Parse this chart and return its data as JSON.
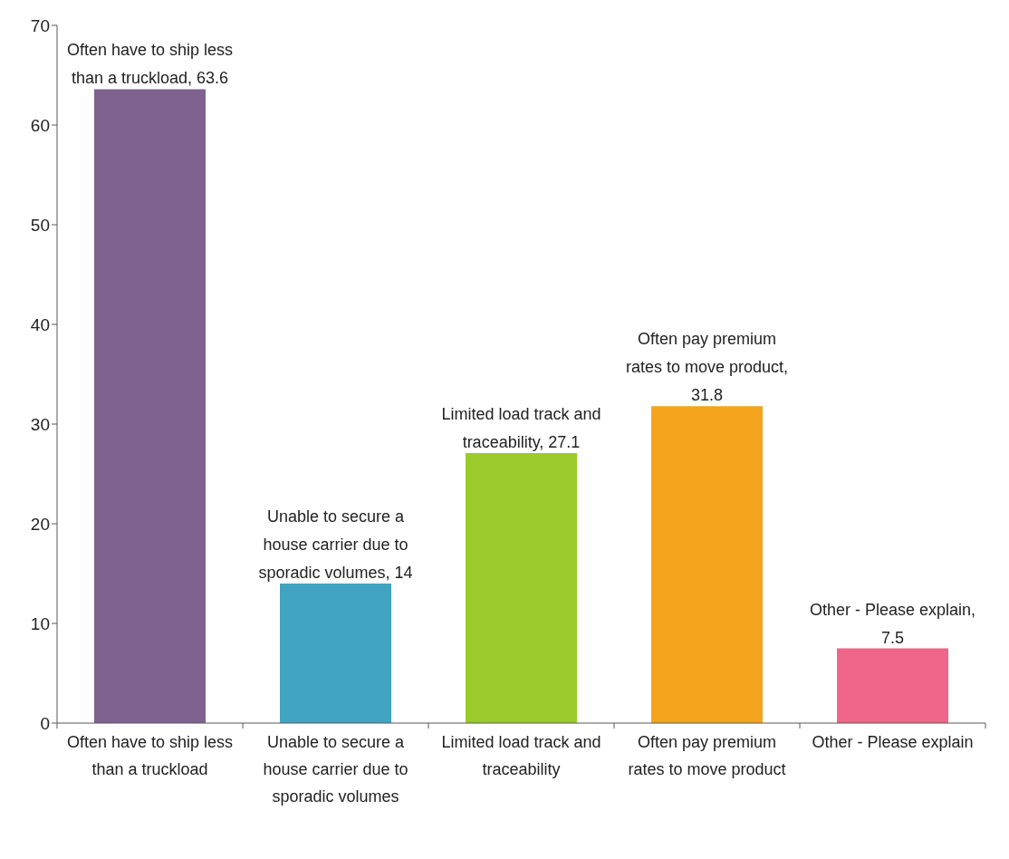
{
  "chart_data": {
    "type": "bar",
    "categories": [
      "Often have to ship less than a truckload",
      "Unable to secure a house carrier due to sporadic volumes",
      "Limited load track and traceability",
      "Often pay premium rates to move product",
      "Other - Please explain"
    ],
    "values": [
      63.6,
      14,
      27.1,
      31.8,
      7.5
    ],
    "colors": [
      "#7f6290",
      "#40a4c1",
      "#9acb2b",
      "#f4a41d",
      "#ef6688"
    ],
    "value_labels": [
      "Often have to ship less than a truckload, 63.6",
      "Unable to secure a house carrier due to sporadic volumes, 14",
      "Limited load track and traceability, 27.1",
      "Often pay premium rates to move product, 31.8",
      "Other - Please explain, 7.5"
    ],
    "ylim": [
      0,
      70
    ],
    "yticks": [
      0,
      10,
      20,
      30,
      40,
      50,
      60,
      70
    ],
    "grid": false,
    "legend": false
  }
}
